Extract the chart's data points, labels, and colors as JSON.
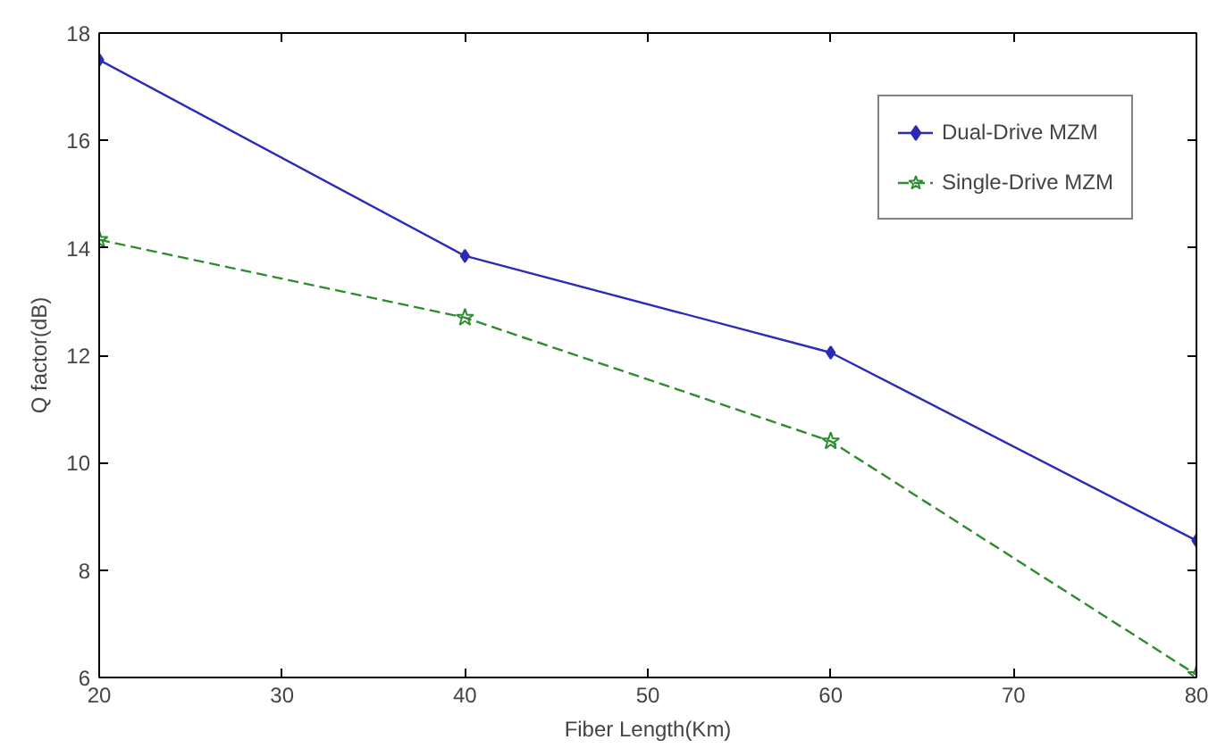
{
  "chart_data": {
    "type": "line",
    "xlabel": "Fiber Length(Km)",
    "ylabel": "Q factor(dB)",
    "x": [
      20,
      40,
      60,
      80
    ],
    "xlim": [
      20,
      80
    ],
    "xticks": [
      20,
      30,
      40,
      50,
      60,
      70,
      80
    ],
    "ylim": [
      6,
      18
    ],
    "yticks": [
      6,
      8,
      10,
      12,
      14,
      16,
      18
    ],
    "grid": false,
    "legend": "top right",
    "series": [
      {
        "name": "Dual-Drive MZM",
        "color": "#2b2bb8",
        "values": [
          17.5,
          13.85,
          12.05,
          8.55
        ],
        "marker": "diamond",
        "line_style": "solid"
      },
      {
        "name": "Single-Drive MZM",
        "color": "#2e8b2e",
        "values": [
          14.15,
          12.7,
          10.4,
          6.05
        ],
        "marker": "star",
        "line_style": "dashed"
      }
    ]
  }
}
